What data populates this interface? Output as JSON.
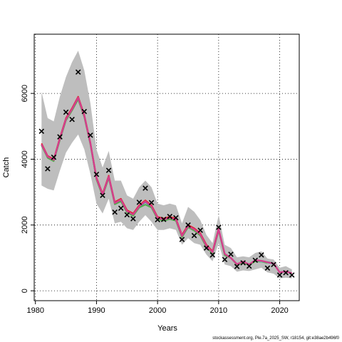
{
  "chart_data": {
    "type": "line",
    "xlabel": "Years",
    "ylabel": "Catch",
    "xlim": [
      1979.8,
      2023.2
    ],
    "ylim": [
      -300,
      7800
    ],
    "x_ticks": [
      1980,
      1990,
      2000,
      2010,
      2020
    ],
    "y_ticks": [
      0,
      2000,
      4000,
      6000
    ],
    "grid": "dotted",
    "footer": "stockassessment.org, Ple.7a_2025_SW, r18154, git:e38ae2b496f0",
    "colors": {
      "band": "#bebebe",
      "observed_marker": "#000000",
      "series_colors": [
        "#e41a1c",
        "#377eb8",
        "#4daf4a",
        "#984ea3",
        "#ff7f00",
        "#a65628",
        "#f781bf",
        "#999999",
        "#66c2a5",
        "#d43f8d"
      ]
    },
    "observed": {
      "x": [
        1981,
        1982,
        1983,
        1984,
        1985,
        1986,
        1987,
        1988,
        1989,
        1990,
        1991,
        1992,
        1993,
        1994,
        1995,
        1996,
        1997,
        1998,
        1999,
        2000,
        2001,
        2002,
        2003,
        2004,
        2005,
        2006,
        2007,
        2008,
        2009,
        2010,
        2011,
        2012,
        2013,
        2014,
        2015,
        2016,
        2017,
        2018,
        2019,
        2020,
        2021,
        2022
      ],
      "y": [
        4850,
        3710,
        4060,
        4680,
        5430,
        5210,
        6650,
        5450,
        4730,
        3540,
        2900,
        3660,
        2390,
        2510,
        2310,
        2190,
        2690,
        3120,
        2680,
        2160,
        2170,
        2260,
        2220,
        1560,
        2000,
        1680,
        1840,
        1300,
        1090,
        1930,
        950,
        1110,
        740,
        850,
        750,
        930,
        1090,
        690,
        800,
        480,
        550,
        480
      ]
    },
    "band": {
      "x": [
        1981,
        1982,
        1983,
        1984,
        1985,
        1986,
        1987,
        1988,
        1989,
        1990,
        1991,
        1992,
        1993,
        1994,
        1995,
        1996,
        1997,
        1998,
        1999,
        2000,
        2001,
        2002,
        2003,
        2004,
        2005,
        2006,
        2007,
        2008,
        2009,
        2010,
        2011,
        2012,
        2013,
        2014,
        2015,
        2016,
        2017,
        2018,
        2019,
        2020,
        2021,
        2022
      ],
      "lower": [
        3200,
        3100,
        3050,
        3650,
        4200,
        4500,
        4750,
        4300,
        3550,
        2650,
        2350,
        2800,
        2050,
        2100,
        1900,
        1850,
        2100,
        2300,
        2100,
        1850,
        1850,
        1900,
        1850,
        1400,
        1600,
        1450,
        1400,
        1100,
        900,
        1450,
        800,
        750,
        580,
        620,
        600,
        650,
        700,
        560,
        520,
        380,
        400,
        380
      ],
      "upper": [
        6050,
        5250,
        5150,
        5900,
        6500,
        6950,
        7300,
        6700,
        5700,
        4300,
        3750,
        4250,
        3350,
        3350,
        2900,
        2800,
        3150,
        3350,
        3150,
        2650,
        2600,
        2650,
        2600,
        2050,
        2550,
        2400,
        2150,
        1700,
        1450,
        2300,
        1400,
        1300,
        1020,
        1050,
        1020,
        1150,
        1200,
        980,
        950,
        700,
        750,
        650
      ]
    },
    "series": [
      {
        "color": "#e41a1c",
        "x": [
          1981,
          1982,
          1983,
          1984,
          1985,
          1986,
          1987,
          1988,
          1989,
          1990,
          1991,
          1992,
          1993,
          1994,
          1995,
          1996,
          1997,
          1998,
          1999,
          2000,
          2001,
          2002,
          2003,
          2004,
          2005,
          2006,
          2007,
          2008,
          2009,
          2010
        ],
        "y": [
          4480,
          4100,
          4000,
          4650,
          5250,
          5550,
          5900,
          5350,
          4500,
          3450,
          2950,
          3500,
          2700,
          2800,
          2450,
          2350,
          2600,
          2750,
          2600,
          2250,
          2200,
          2250,
          2200,
          1700,
          2000,
          1900,
          1750,
          1400,
          1200,
          1900
        ]
      },
      {
        "color": "#377eb8",
        "x": [
          1981,
          1982,
          1983,
          1984,
          1985,
          1986,
          1987,
          1988,
          1989,
          1990,
          1991,
          1992,
          1993,
          1994,
          1995,
          1996,
          1997,
          1998,
          1999,
          2000,
          2001,
          2002,
          2003,
          2004,
          2005,
          2006,
          2007,
          2008,
          2009,
          2010,
          2011,
          2012,
          2013,
          2014,
          2015,
          2016,
          2017,
          2018,
          2019
        ],
        "y": [
          4440,
          4060,
          3960,
          4600,
          5200,
          5500,
          5850,
          5300,
          4460,
          3400,
          2900,
          3450,
          2650,
          2750,
          2400,
          2300,
          2550,
          2700,
          2550,
          2200,
          2150,
          2200,
          2150,
          1650,
          1950,
          1850,
          1700,
          1350,
          1150,
          1850,
          1100,
          1000,
          800,
          880,
          790,
          920,
          900,
          860,
          820
        ]
      },
      {
        "color": "#4daf4a",
        "x": [
          1981,
          1982,
          1983,
          1984,
          1985,
          1986,
          1987,
          1988,
          1989,
          1990,
          1991,
          1992,
          1993,
          1994,
          1995,
          1996,
          1997,
          1998,
          1999,
          2000,
          2001,
          2002,
          2003,
          2004,
          2005,
          2006,
          2007,
          2008,
          2009,
          2010,
          2011,
          2012,
          2013,
          2014,
          2015,
          2016,
          2017,
          2018
        ],
        "y": [
          4420,
          4040,
          3940,
          4580,
          5180,
          5480,
          5820,
          5280,
          4440,
          3380,
          2880,
          3430,
          2630,
          2720,
          2380,
          2280,
          2530,
          2620,
          2530,
          2180,
          2130,
          2180,
          2130,
          1630,
          1930,
          1830,
          1680,
          1330,
          1130,
          1830,
          1080,
          1000,
          790,
          860,
          780,
          900,
          880,
          850
        ]
      },
      {
        "color": "#66c2a5",
        "x": [
          2016,
          2017,
          2018,
          2019,
          2020
        ],
        "y": [
          930,
          880,
          880,
          840,
          560
        ]
      },
      {
        "color": "#d43f8d",
        "x": [
          1981,
          1982,
          1983,
          1984,
          1985,
          1986,
          1987,
          1988,
          1989,
          1990,
          1991,
          1992,
          1993,
          1994,
          1995,
          1996,
          1997,
          1998,
          1999,
          2000,
          2001,
          2002,
          2003,
          2004,
          2005,
          2006,
          2007,
          2008,
          2009,
          2010,
          2011,
          2012,
          2013,
          2014,
          2015,
          2016,
          2017,
          2018,
          2019,
          2020,
          2021,
          2022
        ],
        "y": [
          4450,
          4080,
          3980,
          4620,
          5220,
          5520,
          5870,
          5320,
          4480,
          3420,
          2920,
          3470,
          2670,
          2770,
          2420,
          2320,
          2570,
          2720,
          2570,
          2220,
          2170,
          2220,
          2170,
          1670,
          1970,
          1870,
          1720,
          1370,
          1170,
          1870,
          1120,
          1000,
          810,
          890,
          800,
          930,
          910,
          870,
          830,
          560,
          590,
          530
        ]
      }
    ]
  }
}
